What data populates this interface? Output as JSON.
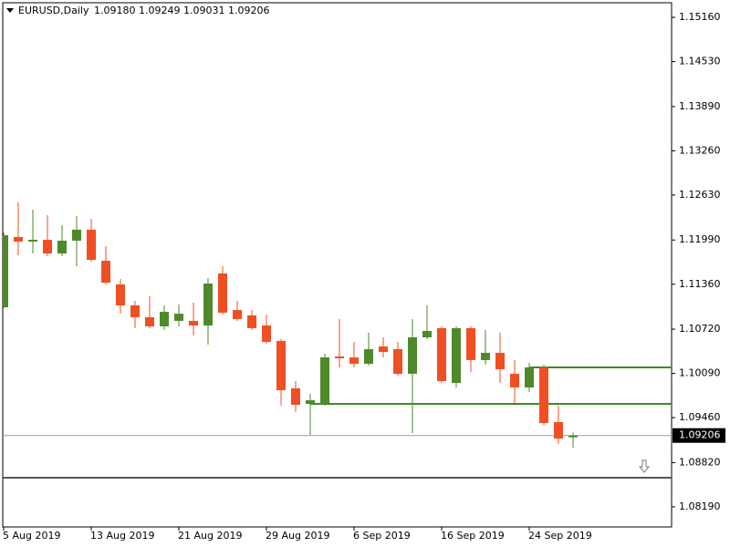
{
  "header": {
    "symbol": "EURUSD,Daily",
    "quote": [
      "1.09180",
      "1.09249",
      "1.09031",
      "1.09206"
    ]
  },
  "chart_data": {
    "type": "candlestick",
    "categories": [
      "5 Aug 2019",
      null,
      null,
      null,
      null,
      null,
      "13 Aug 2019",
      null,
      null,
      null,
      null,
      null,
      "21 Aug 2019",
      null,
      null,
      null,
      null,
      null,
      "29 Aug 2019",
      null,
      null,
      null,
      null,
      null,
      "6 Sep 2019",
      null,
      null,
      null,
      null,
      null,
      "16 Sep 2019",
      null,
      null,
      null,
      null,
      null,
      "24 Sep 2019",
      null,
      null,
      null
    ],
    "open": [
      1.11032,
      1.12032,
      1.11967,
      1.11993,
      1.11798,
      1.1198,
      1.12136,
      1.11694,
      1.11357,
      1.11058,
      1.1089,
      1.1076,
      1.10838,
      1.10838,
      1.10773,
      1.11513,
      1.10993,
      1.10916,
      1.10773,
      1.10552,
      1.09877,
      1.09656,
      1.09669,
      1.10331,
      1.10318,
      1.10227,
      1.10474,
      1.10435,
      1.10085,
      1.10604,
      1.10734,
      1.09955,
      1.10734,
      1.1028,
      1.10383,
      1.10085,
      1.0989,
      1.10176,
      1.09397,
      1.0918
    ],
    "high": [
      1.12097,
      1.12525,
      1.12421,
      1.12343,
      1.12201,
      1.1233,
      1.12291,
      1.11902,
      1.11435,
      1.11123,
      1.11188,
      1.11058,
      1.11071,
      1.11097,
      1.11448,
      1.11617,
      1.11123,
      1.10993,
      1.10929,
      1.10578,
      1.09981,
      1.09799,
      1.1037,
      1.10864,
      1.10539,
      1.10669,
      1.10604,
      1.10539,
      1.10864,
      1.11058,
      1.1076,
      1.1076,
      1.1076,
      1.10708,
      1.10669,
      1.1028,
      1.10241,
      1.10215,
      1.0963,
      1.09249
    ],
    "low": [
      1.11019,
      1.11772,
      1.11798,
      1.11759,
      1.11759,
      1.11616,
      1.11681,
      1.11357,
      1.10942,
      1.10734,
      1.10734,
      1.10708,
      1.1076,
      1.1063,
      1.105,
      1.10929,
      1.10838,
      1.10708,
      1.10513,
      1.09631,
      1.0954,
      1.09215,
      1.09631,
      1.10176,
      1.10176,
      1.10202,
      1.10318,
      1.10059,
      1.09241,
      1.10578,
      1.09955,
      1.0989,
      1.10111,
      1.10215,
      1.09955,
      1.09669,
      1.09825,
      1.09358,
      1.09085,
      1.09031
    ],
    "close": [
      1.12058,
      1.11967,
      1.11993,
      1.11798,
      1.1198,
      1.12136,
      1.11707,
      1.11383,
      1.11058,
      1.1089,
      1.1076,
      1.10967,
      1.10941,
      1.10773,
      1.1137,
      1.10955,
      1.10864,
      1.10734,
      1.10539,
      1.09851,
      1.09643,
      1.09708,
      1.10318,
      1.10305,
      1.10227,
      1.10435,
      1.10396,
      1.10085,
      1.10604,
      1.10695,
      1.09981,
      1.10734,
      1.1028,
      1.10383,
      1.1015,
      1.0989,
      1.10176,
      1.09384,
      1.09163,
      1.09206
    ],
    "up_color": "#4e8a2b",
    "down_color": "#f04f23",
    "ylim": [
      1.07904,
      1.15368
    ],
    "yticks": [
      {
        "value": 1.1516,
        "label": "1.15160"
      },
      {
        "value": 1.1453,
        "label": "1.14530"
      },
      {
        "value": 1.1389,
        "label": "1.13890"
      },
      {
        "value": 1.1326,
        "label": "1.13260"
      },
      {
        "value": 1.1263,
        "label": "1.12630"
      },
      {
        "value": 1.1199,
        "label": "1.11990"
      },
      {
        "value": 1.1136,
        "label": "1.11360"
      },
      {
        "value": 1.1072,
        "label": "1.10720"
      },
      {
        "value": 1.1009,
        "label": "1.10090"
      },
      {
        "value": 1.0946,
        "label": "1.09460"
      },
      {
        "value": 1.0882,
        "label": "1.08820"
      },
      {
        "value": 1.0819,
        "label": "1.08190"
      }
    ],
    "current_price": {
      "value": 1.09206,
      "label": "1.09206"
    },
    "levels": [
      {
        "value": 1.10176,
        "color": "#3f8a22",
        "start": 36
      },
      {
        "value": 1.09656,
        "color": "#3f8a22",
        "start": 21
      },
      {
        "value": 1.08605,
        "color": "#555555",
        "start": 0
      }
    ]
  }
}
